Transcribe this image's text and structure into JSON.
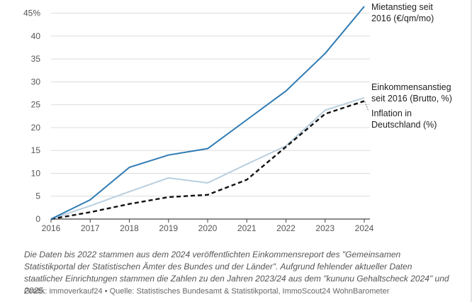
{
  "chart_data": {
    "type": "line",
    "x": [
      "2016",
      "2017",
      "2018",
      "2019",
      "2020",
      "2021",
      "2022",
      "2023",
      "2024"
    ],
    "series": [
      {
        "name": "Mietanstieg seit 2016 (€/qm/mo)",
        "label_lines": [
          "Mietanstieg seit",
          "2016 (€/qm/mo)"
        ],
        "color": "#2f7bb3",
        "style": "solid",
        "values": [
          0,
          4.2,
          11.3,
          14.0,
          15.4,
          21.7,
          28.0,
          36.2,
          46.5
        ]
      },
      {
        "name": "Einkommensanstieg seit 2016 (Brutto, %)",
        "label_lines": [
          "Einkommensanstieg",
          "seit 2016 (Brutto, %)"
        ],
        "color": "#b9cfdf",
        "style": "solid",
        "values": [
          0,
          2.9,
          6.0,
          9.0,
          7.9,
          12.0,
          16.0,
          23.8,
          26.5
        ]
      },
      {
        "name": "Inflation in Deutschland (%)",
        "label_lines": [
          "Inflation in",
          "Deutschland (%)"
        ],
        "color": "#111111",
        "style": "dashed",
        "values": [
          0,
          1.5,
          3.3,
          4.8,
          5.3,
          8.6,
          15.8,
          23.0,
          25.8
        ]
      }
    ],
    "yticks": [
      0,
      5,
      10,
      15,
      20,
      25,
      30,
      35,
      40,
      45
    ],
    "ytick_labels": [
      "0",
      "5",
      "10",
      "15",
      "20",
      "25",
      "30",
      "35",
      "40",
      "45%"
    ],
    "ylim": [
      0,
      46.5
    ],
    "grid": true
  },
  "footnote": "Die Daten bis 2022 stammen aus dem 2024 veröffentlichten Einkommensreport des \"Gemeinsamen Statistikportal der Statistischen Ämter des Bundes und der Länder\". Aufgrund fehlender aktueller Daten staatlicher Einrichtungen stammen die Zahlen zu den Jahren 2023/24 aus dem \"kununu Gehaltscheck 2024\" und 2025.",
  "source": "Grafik: immoverkauf24 • Quelle: Statistisches Bundesamt & Statistikportal, ImmoScout24 WohnBarometer"
}
